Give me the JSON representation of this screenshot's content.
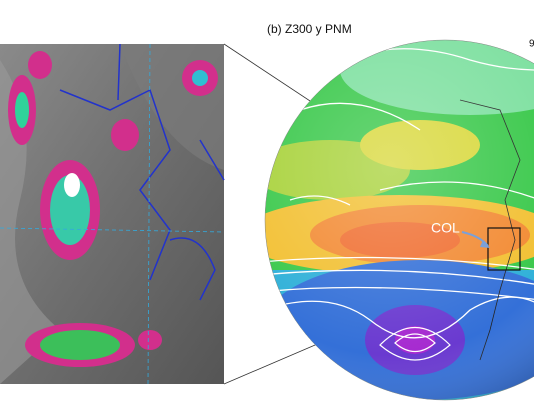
{
  "panel_b": {
    "title": "(b) Z300 y PNM",
    "annotation": "COL",
    "edge_label": "9"
  }
}
